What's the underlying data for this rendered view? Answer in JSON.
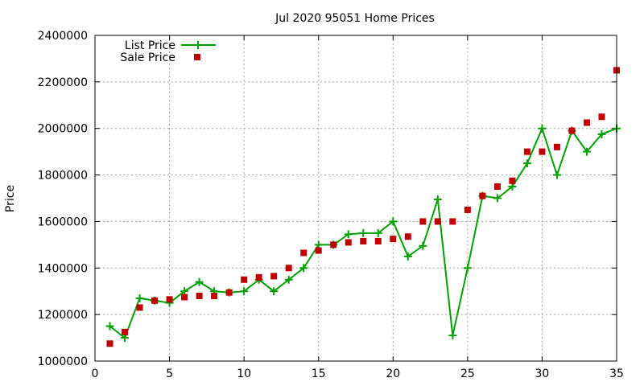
{
  "chart_data": {
    "type": "line",
    "title": "Jul 2020 95051 Home Prices",
    "xlabel": "",
    "ylabel": "Price",
    "xlim": [
      0,
      35
    ],
    "ylim": [
      1000000,
      2400000
    ],
    "x_ticks": [
      0,
      5,
      10,
      15,
      20,
      25,
      30,
      35
    ],
    "y_ticks": [
      1000000,
      1200000,
      1400000,
      1600000,
      1800000,
      2000000,
      2200000,
      2400000
    ],
    "grid": true,
    "legend_position": "top-left",
    "series": [
      {
        "name": "List Price",
        "style": "line-with-plus-markers",
        "color": "#00a000",
        "x": [
          1,
          2,
          3,
          4,
          5,
          6,
          7,
          8,
          9,
          10,
          11,
          12,
          13,
          14,
          15,
          16,
          17,
          18,
          19,
          20,
          21,
          22,
          23,
          24,
          25,
          26,
          27,
          28,
          29,
          30,
          31,
          32,
          33,
          34,
          35
        ],
        "values": [
          1150000,
          1100000,
          1270000,
          1260000,
          1250000,
          1300000,
          1340000,
          1300000,
          1295000,
          1300000,
          1350000,
          1300000,
          1350000,
          1400000,
          1500000,
          1500000,
          1545000,
          1550000,
          1550000,
          1600000,
          1450000,
          1495000,
          1695000,
          1110000,
          1400000,
          1710000,
          1700000,
          1750000,
          1850000,
          2000000,
          1800000,
          1990000,
          1900000,
          1975000,
          2000000
        ]
      },
      {
        "name": "Sale Price",
        "style": "square-markers",
        "color": "#c00000",
        "x": [
          1,
          2,
          3,
          4,
          5,
          6,
          7,
          8,
          9,
          10,
          11,
          12,
          13,
          14,
          15,
          16,
          17,
          18,
          19,
          20,
          21,
          22,
          23,
          24,
          25,
          26,
          27,
          28,
          29,
          30,
          31,
          32,
          33,
          34,
          35
        ],
        "values": [
          1075000,
          1125000,
          1230000,
          1260000,
          1265000,
          1275000,
          1280000,
          1280000,
          1295000,
          1350000,
          1360000,
          1365000,
          1400000,
          1465000,
          1475000,
          1500000,
          1510000,
          1515000,
          1515000,
          1525000,
          1535000,
          1600000,
          1600000,
          1600000,
          1650000,
          1710000,
          1750000,
          1775000,
          1900000,
          1900000,
          1920000,
          1990000,
          2025000,
          2050000,
          2250000
        ]
      }
    ]
  }
}
